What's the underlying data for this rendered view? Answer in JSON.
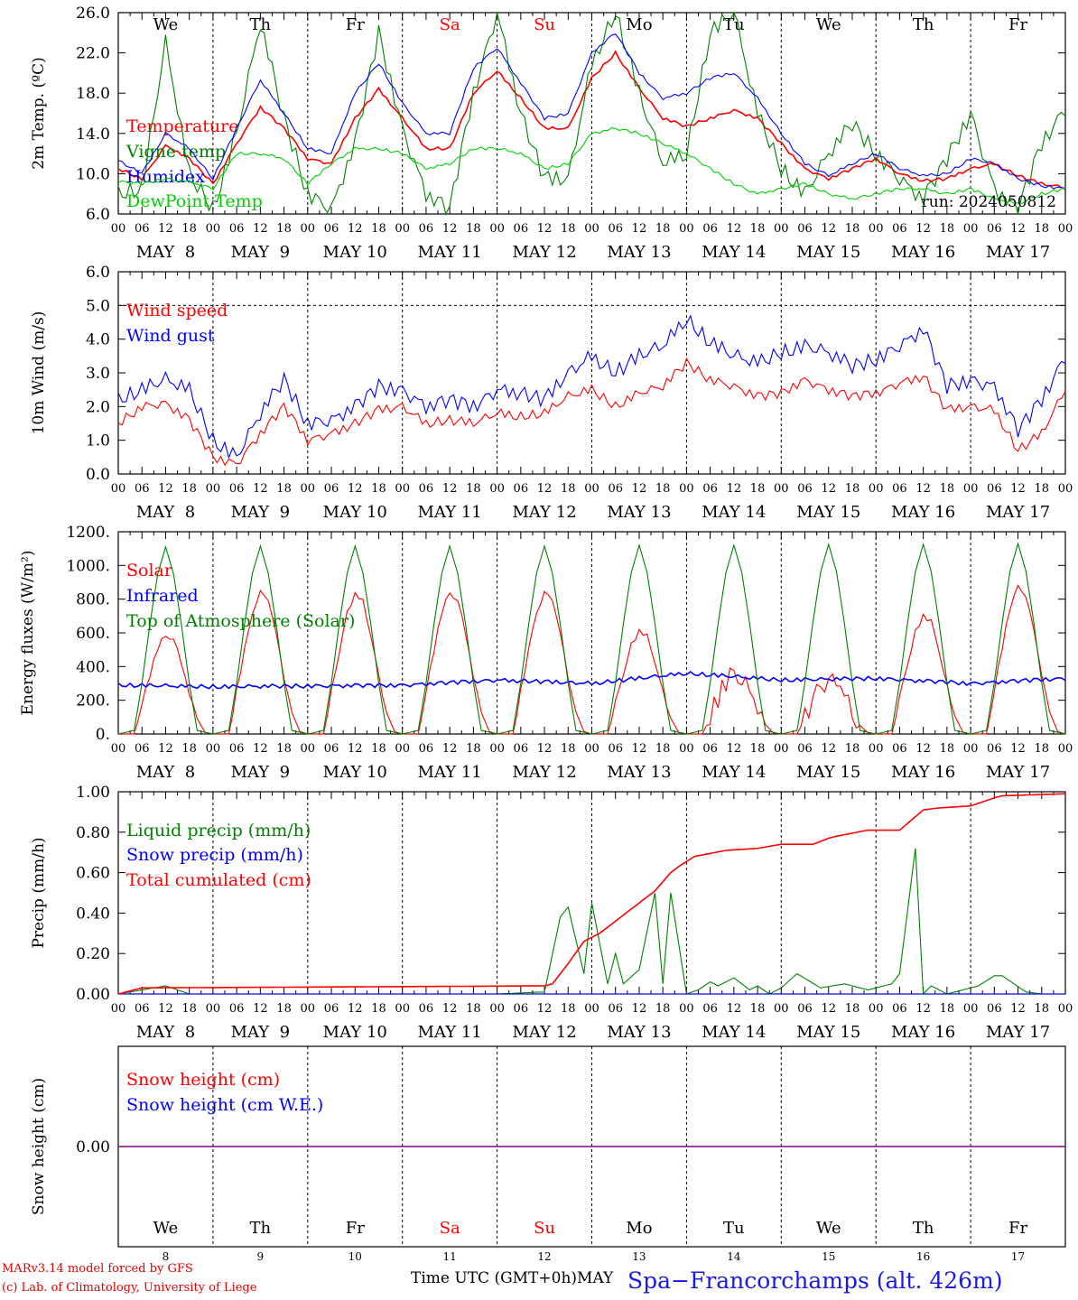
{
  "days": [
    {
      "date": "MAY  8",
      "num": "8",
      "dow": "We",
      "weekend": false
    },
    {
      "date": "MAY  9",
      "num": "9",
      "dow": "Th",
      "weekend": false
    },
    {
      "date": "MAY 10",
      "num": "10",
      "dow": "Fr",
      "weekend": false
    },
    {
      "date": "MAY 11",
      "num": "11",
      "dow": "Sa",
      "weekend": true
    },
    {
      "date": "MAY 12",
      "num": "12",
      "dow": "Su",
      "weekend": true
    },
    {
      "date": "MAY 13",
      "num": "13",
      "dow": "Mo",
      "weekend": false
    },
    {
      "date": "MAY 14",
      "num": "14",
      "dow": "Tu",
      "weekend": false
    },
    {
      "date": "MAY 15",
      "num": "15",
      "dow": "We",
      "weekend": false
    },
    {
      "date": "MAY 16",
      "num": "16",
      "dow": "Th",
      "weekend": false
    },
    {
      "date": "MAY 17",
      "num": "17",
      "dow": "Fr",
      "weekend": false
    }
  ],
  "hour_ticks": [
    "00",
    "06",
    "12",
    "18"
  ],
  "last_tick": "00",
  "footer": {
    "model": "MARv3.14 model forced by GFS",
    "lab": "(c) Lab. of Climatology, University of Liege",
    "xlabel": "Time UTC (GMT+0h)",
    "month": "MAY",
    "station": "Spa−Francorchamps (alt. 426m)"
  },
  "colors": {
    "red": "#ff0000",
    "green": "#008000",
    "blue": "#0000ff",
    "lightgreen": "#00d000",
    "purple": "#800080"
  },
  "chart_data": [
    {
      "type": "line",
      "ylabel": "2m Temp. (ºC)",
      "ylim": [
        6,
        26
      ],
      "yticks": [
        "6.0",
        "10.0",
        "14.0",
        "18.0",
        "22.0",
        "26.0"
      ],
      "show_dow": true,
      "run_label": "run: 2024050812",
      "x_unit": "hours since MAY 8 00 UTC",
      "series": [
        {
          "name": "Temperature",
          "color": "#ff0000",
          "x": [
            0,
            6,
            12,
            18,
            24,
            30,
            36,
            42,
            48,
            54,
            60,
            66,
            72,
            78,
            84,
            90,
            96,
            102,
            108,
            114,
            120,
            126,
            132,
            138,
            144,
            150,
            156,
            162,
            168,
            174,
            180,
            186,
            192,
            198,
            204,
            210,
            216,
            222,
            228,
            234,
            240
          ],
          "values": [
            10.5,
            9.5,
            12.8,
            11.5,
            9.0,
            13.0,
            16.6,
            14.5,
            11.5,
            11.0,
            15.5,
            18.4,
            15.5,
            12.5,
            12.5,
            18.0,
            20.2,
            17.5,
            14.5,
            14.5,
            19.5,
            22.0,
            18.5,
            15.5,
            14.7,
            15.5,
            16.3,
            15.5,
            13.0,
            10.5,
            9.5,
            10.5,
            11.5,
            10.0,
            9.3,
            9.5,
            10.5,
            11.0,
            9.8,
            9.0,
            8.6
          ]
        },
        {
          "name": "Vigne temp",
          "color": "#008000",
          "x": [
            0,
            6,
            12,
            18,
            24,
            30,
            36,
            42,
            48,
            54,
            60,
            66,
            72,
            78,
            84,
            90,
            96,
            102,
            108,
            114,
            120,
            126,
            132,
            138,
            144,
            150,
            156,
            162,
            168,
            174,
            180,
            186,
            192,
            198,
            204,
            210,
            216,
            222,
            228,
            234,
            240
          ],
          "values": [
            8.0,
            8.5,
            23.0,
            10.0,
            6.5,
            14.0,
            25.0,
            15.5,
            8.0,
            6.5,
            13.0,
            24.0,
            14.5,
            8.0,
            6.5,
            18.0,
            26.0,
            16.0,
            9.5,
            9.5,
            21.0,
            26.0,
            18.0,
            11.0,
            12.0,
            24.0,
            26.0,
            16.0,
            10.5,
            8.0,
            12.0,
            15.0,
            12.0,
            9.5,
            7.5,
            11.5,
            16.0,
            8.5,
            6.5,
            13.0,
            16.5
          ]
        },
        {
          "name": "Humidex",
          "color": "#0000ff",
          "x": [
            0,
            6,
            12,
            18,
            24,
            30,
            36,
            42,
            48,
            54,
            60,
            66,
            72,
            78,
            84,
            90,
            96,
            102,
            108,
            114,
            120,
            126,
            132,
            138,
            144,
            150,
            156,
            162,
            168,
            174,
            180,
            186,
            192,
            198,
            204,
            210,
            216,
            222,
            228,
            234,
            240
          ],
          "values": [
            11.3,
            10.0,
            14.0,
            12.5,
            9.5,
            14.5,
            19.3,
            16.0,
            12.5,
            12.0,
            18.0,
            21.0,
            17.0,
            14.0,
            14.0,
            20.5,
            22.5,
            19.0,
            15.5,
            16.0,
            22.0,
            24.0,
            20.0,
            17.5,
            18.0,
            19.5,
            20.0,
            17.5,
            14.0,
            11.0,
            9.8,
            11.0,
            12.0,
            10.5,
            9.8,
            10.0,
            11.5,
            11.0,
            9.5,
            8.8,
            8.5
          ]
        },
        {
          "name": "DewPoint Temp",
          "color": "#00d000",
          "x": [
            0,
            6,
            12,
            18,
            24,
            30,
            36,
            42,
            48,
            54,
            60,
            66,
            72,
            78,
            84,
            90,
            96,
            102,
            108,
            114,
            120,
            126,
            132,
            138,
            144,
            150,
            156,
            162,
            168,
            174,
            180,
            186,
            192,
            198,
            204,
            210,
            216,
            222,
            228,
            234,
            240
          ],
          "values": [
            9.2,
            9.0,
            9.5,
            9.2,
            8.5,
            12.0,
            12.0,
            11.5,
            9.0,
            11.0,
            12.5,
            12.5,
            12.0,
            10.5,
            11.0,
            12.5,
            12.5,
            12.0,
            10.5,
            11.0,
            14.0,
            14.5,
            14.0,
            13.0,
            12.0,
            10.5,
            9.0,
            8.0,
            8.5,
            9.0,
            8.0,
            7.5,
            8.0,
            8.5,
            8.5,
            8.0,
            8.5,
            7.5,
            7.0,
            8.0,
            8.5
          ]
        }
      ]
    },
    {
      "type": "line",
      "ylabel": "10m Wind (m/s)",
      "ylim": [
        0,
        6
      ],
      "yticks": [
        "0.0",
        "1.0",
        "2.0",
        "3.0",
        "4.0",
        "5.0",
        "6.0"
      ],
      "ref_line": 5.0,
      "x_unit": "hours since MAY 8 00 UTC",
      "series": [
        {
          "name": "Wind speed",
          "color": "#ff0000",
          "x": [
            0,
            6,
            12,
            18,
            24,
            30,
            36,
            42,
            48,
            54,
            60,
            66,
            72,
            78,
            84,
            90,
            96,
            102,
            108,
            114,
            120,
            126,
            132,
            138,
            144,
            150,
            156,
            162,
            168,
            174,
            180,
            186,
            192,
            198,
            204,
            210,
            216,
            222,
            228,
            234,
            240
          ],
          "values": [
            1.5,
            2.0,
            2.1,
            1.6,
            0.5,
            0.3,
            1.2,
            2.0,
            1.0,
            1.2,
            1.5,
            1.9,
            2.0,
            1.5,
            1.6,
            1.5,
            1.8,
            1.7,
            1.8,
            2.3,
            2.5,
            2.0,
            2.4,
            2.6,
            3.3,
            2.8,
            2.6,
            2.3,
            2.4,
            2.8,
            2.5,
            2.3,
            2.4,
            2.7,
            2.9,
            1.9,
            2.0,
            1.9,
            0.7,
            1.2,
            2.5
          ]
        },
        {
          "name": "Wind gust",
          "color": "#0000ff",
          "x": [
            0,
            6,
            12,
            18,
            24,
            30,
            36,
            42,
            48,
            54,
            60,
            66,
            72,
            78,
            84,
            90,
            96,
            102,
            108,
            114,
            120,
            126,
            132,
            138,
            144,
            150,
            156,
            162,
            168,
            174,
            180,
            186,
            192,
            198,
            204,
            210,
            216,
            222,
            228,
            234,
            240
          ],
          "values": [
            2.2,
            2.5,
            2.8,
            2.5,
            1.0,
            0.5,
            1.8,
            2.8,
            1.5,
            1.6,
            2.0,
            2.6,
            2.5,
            2.0,
            2.2,
            2.0,
            2.5,
            2.4,
            2.2,
            3.0,
            3.5,
            3.0,
            3.5,
            3.8,
            4.6,
            3.9,
            3.5,
            3.3,
            3.6,
            3.8,
            3.6,
            3.2,
            3.4,
            3.8,
            4.3,
            2.6,
            2.8,
            2.6,
            1.3,
            2.2,
            3.5
          ]
        }
      ]
    },
    {
      "type": "line",
      "ylabel": "Energy fluxes (W/m²)",
      "ylim": [
        0,
        1200
      ],
      "yticks": [
        "0.",
        "200.",
        "400.",
        "600.",
        "800.",
        "1000.",
        "1200."
      ],
      "x_unit": "hours since MAY 8 00 UTC",
      "daily_peaks_solar": [
        590,
        840,
        830,
        840,
        840,
        610,
        360,
        330,
        700,
        870
      ],
      "daily_peaks_toa": [
        1110,
        1115,
        1115,
        1115,
        1115,
        1120,
        1120,
        1125,
        1125,
        1130
      ],
      "series": [
        {
          "name": "Solar",
          "color": "#ff0000",
          "x": [
            0,
            4,
            5,
            6,
            8,
            10,
            12,
            14,
            16,
            18,
            20,
            22,
            24
          ],
          "values": [
            0,
            0,
            80,
            180,
            350,
            510,
            590,
            560,
            420,
            240,
            90,
            10,
            0
          ]
        },
        {
          "name": "Infrared",
          "color": "#0000ff",
          "x": [
            0,
            24,
            48,
            72,
            96,
            120,
            144,
            168,
            192,
            216,
            240
          ],
          "values": [
            290,
            280,
            285,
            290,
            320,
            300,
            360,
            320,
            330,
            300,
            330
          ]
        },
        {
          "name": "Top of Atmosphere (Solar)",
          "color": "#008000",
          "x": [
            0,
            4,
            6,
            8,
            10,
            12,
            14,
            16,
            18,
            20,
            24
          ],
          "values": [
            0,
            20,
            300,
            650,
            950,
            1110,
            950,
            650,
            300,
            20,
            0
          ]
        }
      ]
    },
    {
      "type": "line",
      "ylabel": "Precip (mm/h)",
      "ylim": [
        0,
        1
      ],
      "yticks": [
        "0.00",
        "0.20",
        "0.40",
        "0.60",
        "0.80",
        "1.00"
      ],
      "x_unit": "hours since MAY 8 00 UTC",
      "series": [
        {
          "name": "Liquid precip (mm/h)",
          "color": "#008000",
          "x": [
            0,
            6,
            12,
            18,
            24,
            60,
            96,
            108,
            112,
            114,
            118,
            120,
            124,
            126,
            128,
            132,
            136,
            138,
            140,
            144,
            147,
            150,
            152,
            156,
            160,
            162,
            165,
            168,
            172,
            178,
            184,
            190,
            196,
            198,
            202,
            204,
            206,
            210,
            218,
            222,
            224,
            230,
            234,
            240
          ],
          "values": [
            0,
            0.02,
            0.04,
            0,
            0,
            0,
            0,
            0.01,
            0.38,
            0.43,
            0.1,
            0.45,
            0.05,
            0.2,
            0.05,
            0.12,
            0.5,
            0.05,
            0.5,
            0,
            0.02,
            0.06,
            0.04,
            0.08,
            0.02,
            0.04,
            0,
            0.03,
            0.1,
            0.03,
            0.05,
            0.02,
            0.05,
            0.1,
            0.72,
            0,
            0.04,
            0,
            0.04,
            0.09,
            0.09,
            0.01,
            0,
            0
          ]
        },
        {
          "name": "Snow precip (mm/h)",
          "color": "#0000ff",
          "x": [
            0,
            240
          ],
          "values": [
            0,
            0
          ]
        },
        {
          "name": "Total cumulated (cm)",
          "color": "#ff0000",
          "x": [
            0,
            6,
            108,
            110,
            114,
            118,
            122,
            126,
            132,
            136,
            140,
            142,
            146,
            154,
            162,
            168,
            176,
            180,
            182,
            190,
            198,
            204,
            208,
            216,
            222,
            224,
            240
          ],
          "values": [
            0,
            0.03,
            0.04,
            0.05,
            0.15,
            0.26,
            0.3,
            0.36,
            0.45,
            0.51,
            0.6,
            0.63,
            0.68,
            0.71,
            0.72,
            0.74,
            0.74,
            0.77,
            0.78,
            0.81,
            0.81,
            0.91,
            0.92,
            0.93,
            0.97,
            0.98,
            0.99
          ]
        }
      ]
    },
    {
      "type": "line",
      "ylabel": "Snow height (cm)",
      "ylim": [
        -1,
        1
      ],
      "yticks": [
        "0.00"
      ],
      "show_dow_bottom": true,
      "x_unit": "hours since MAY 8 00 UTC",
      "series": [
        {
          "name": "Snow height (cm)",
          "color": "#ff0000",
          "x": [
            0,
            240
          ],
          "values": [
            0,
            0
          ]
        },
        {
          "name": "Snow height (cm W.E.)",
          "color": "#0000ff",
          "x": [
            0,
            240
          ],
          "values": [
            0,
            0
          ]
        }
      ]
    }
  ]
}
